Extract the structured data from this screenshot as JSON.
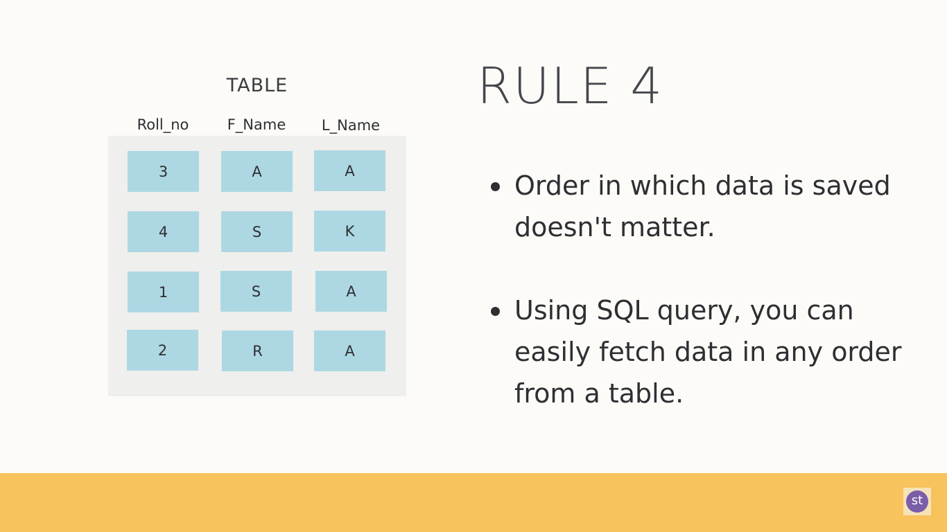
{
  "table": {
    "caption": "TABLE",
    "columns": [
      "Roll_no",
      "F_Name",
      "L_Name"
    ],
    "rows": [
      [
        "3",
        "A",
        "A"
      ],
      [
        "4",
        "S",
        "K"
      ],
      [
        "1",
        "S",
        "A"
      ],
      [
        "2",
        "R",
        "A"
      ]
    ]
  },
  "rule": {
    "title": "RULE 4",
    "bullets": [
      "Order in which data is saved doesn't matter.",
      "Using SQL query, you can easily fetch data in any order from a table."
    ]
  },
  "logo": {
    "text": "st"
  },
  "colors": {
    "background": "#fdfbf7",
    "table_panel": "#efefed",
    "cell": "#add8e3",
    "footer": "#f8c25c",
    "logo_circle": "#7a5ea8"
  }
}
